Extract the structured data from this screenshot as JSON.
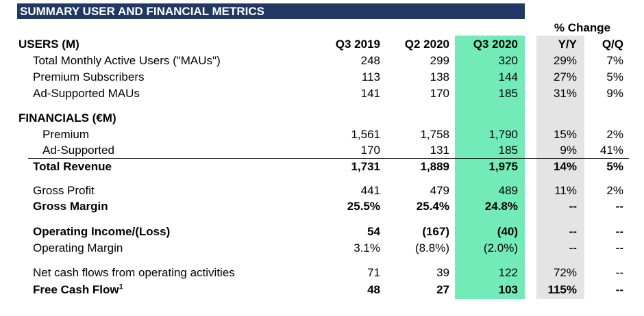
{
  "title": "SUMMARY USER AND FINANCIAL METRICS",
  "pct_change_label": "% Change",
  "headers": {
    "section": "USERS (M)",
    "c1": "Q3 2019",
    "c2": "Q2 2020",
    "c3": "Q3 2020",
    "c4": "Y/Y",
    "c5": "Q/Q"
  },
  "rows": [
    {
      "label": "Total Monthly Active Users (\"MAUs\")",
      "c1": "248",
      "c2": "299",
      "c3": "320",
      "c4": "29%",
      "c5": "7%"
    },
    {
      "label": "Premium Subscribers",
      "c1": "113",
      "c2": "138",
      "c3": "144",
      "c4": "27%",
      "c5": "5%"
    },
    {
      "label": "Ad-Supported MAUs",
      "c1": "141",
      "c2": "170",
      "c3": "185",
      "c4": "31%",
      "c5": "9%"
    },
    {
      "label": "FINANCIALS (€M)"
    },
    {
      "label": "Premium",
      "c1": "1,561",
      "c2": "1,758",
      "c3": "1,790",
      "c4": "15%",
      "c5": "2%"
    },
    {
      "label": "Ad-Supported",
      "c1": "170",
      "c2": "131",
      "c3": "185",
      "c4": "9%",
      "c5": "41%"
    },
    {
      "label": "Total Revenue",
      "c1": "1,731",
      "c2": "1,889",
      "c3": "1,975",
      "c4": "14%",
      "c5": "5%"
    },
    {
      "label": "Gross Profit",
      "c1": "441",
      "c2": "479",
      "c3": "489",
      "c4": "11%",
      "c5": "2%"
    },
    {
      "label": "Gross Margin",
      "c1": "25.5%",
      "c2": "25.4%",
      "c3": "24.8%",
      "c4": "--",
      "c5": "--"
    },
    {
      "label": "Operating Income/(Loss)",
      "c1": "54",
      "c2": "(167)",
      "c3": "(40)",
      "c4": "--",
      "c5": "--"
    },
    {
      "label": "Operating Margin",
      "c1": "3.1%",
      "c2": "(8.8%)",
      "c3": "(2.0%)",
      "c4": "--",
      "c5": "--"
    },
    {
      "label": "Net cash flows from operating activities",
      "c1": "71",
      "c2": "39",
      "c3": "122",
      "c4": "72%",
      "c5": "--"
    },
    {
      "label": "Free Cash Flow",
      "sup": "1",
      "c1": "48",
      "c2": "27",
      "c3": "103",
      "c4": "115%",
      "c5": "--"
    }
  ]
}
